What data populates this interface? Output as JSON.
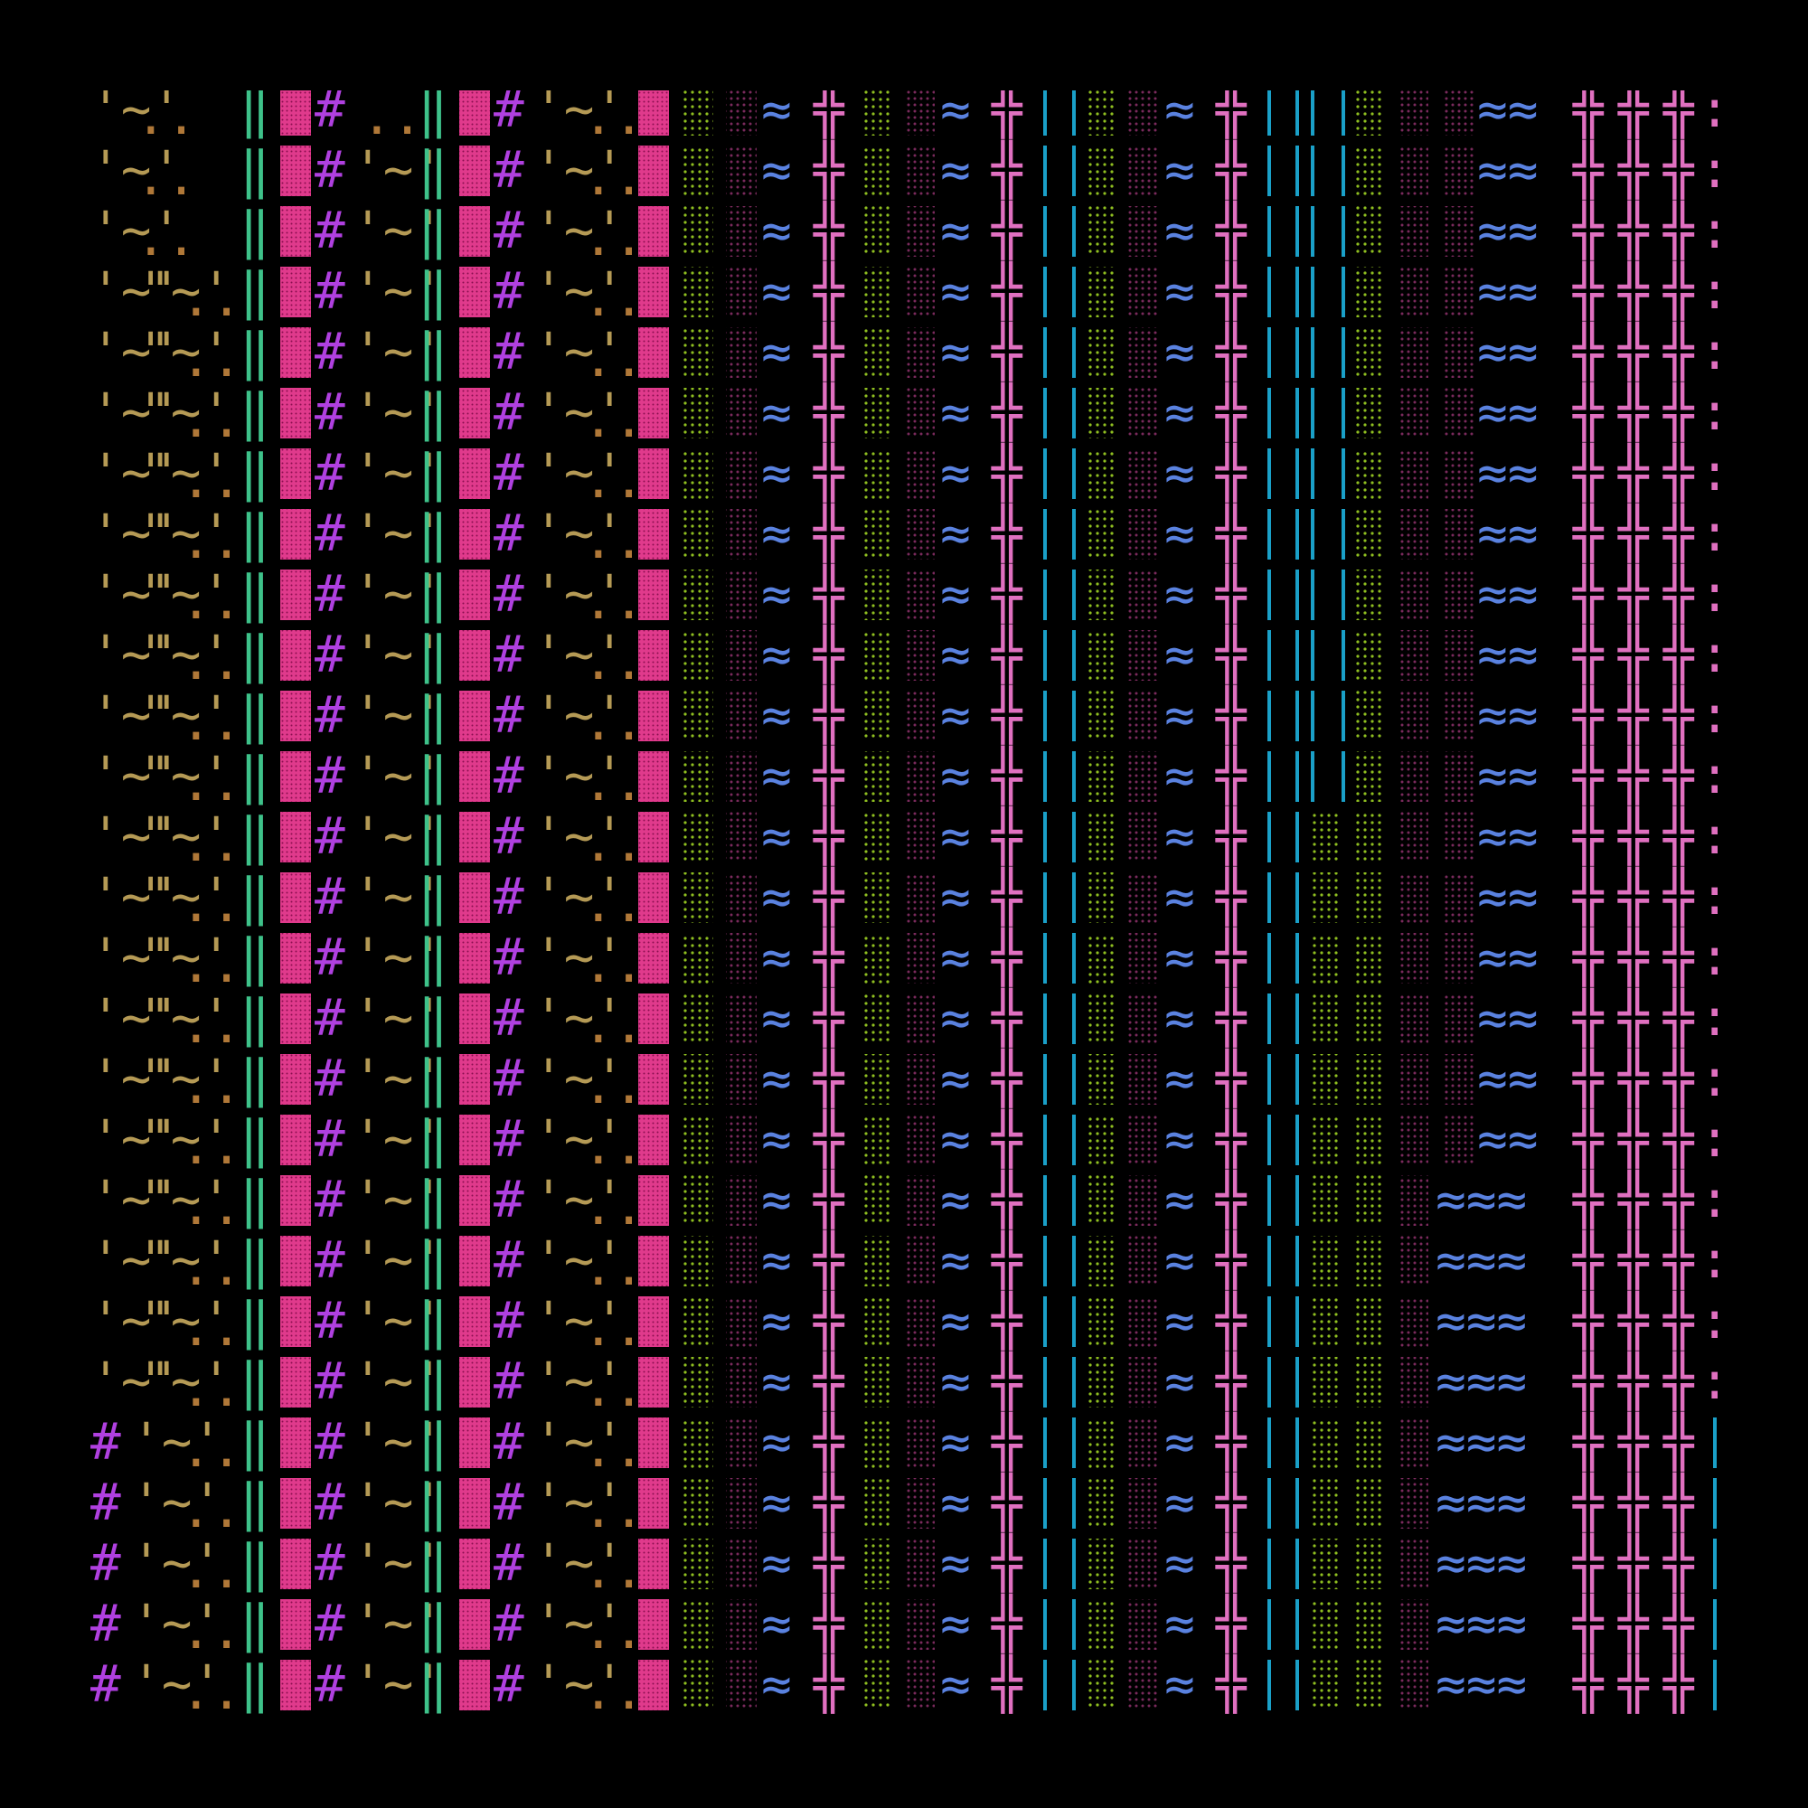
{
  "palette": {
    "background": "#000000",
    "tan": "#b59a55",
    "brown": "#b07838",
    "green": "#3ec28a",
    "pink": "#e03a8c",
    "dark_pink": "#7a2a5c",
    "magenta": "#b040e0",
    "lime": "#8fbf20",
    "blue": "#5a82e0",
    "orchid": "#e070c0",
    "cyan": "#1aa0c8"
  },
  "glyphs": {
    "quote": "'",
    "double_quote": "\"",
    "tilde": "~",
    "dots": "..",
    "double_bar": "‖",
    "hash": "#",
    "pipe": "|",
    "block": "▓",
    "dotted": "⁘",
    "wave": "≈",
    "cross": "╬",
    "colon": ":"
  }
}
